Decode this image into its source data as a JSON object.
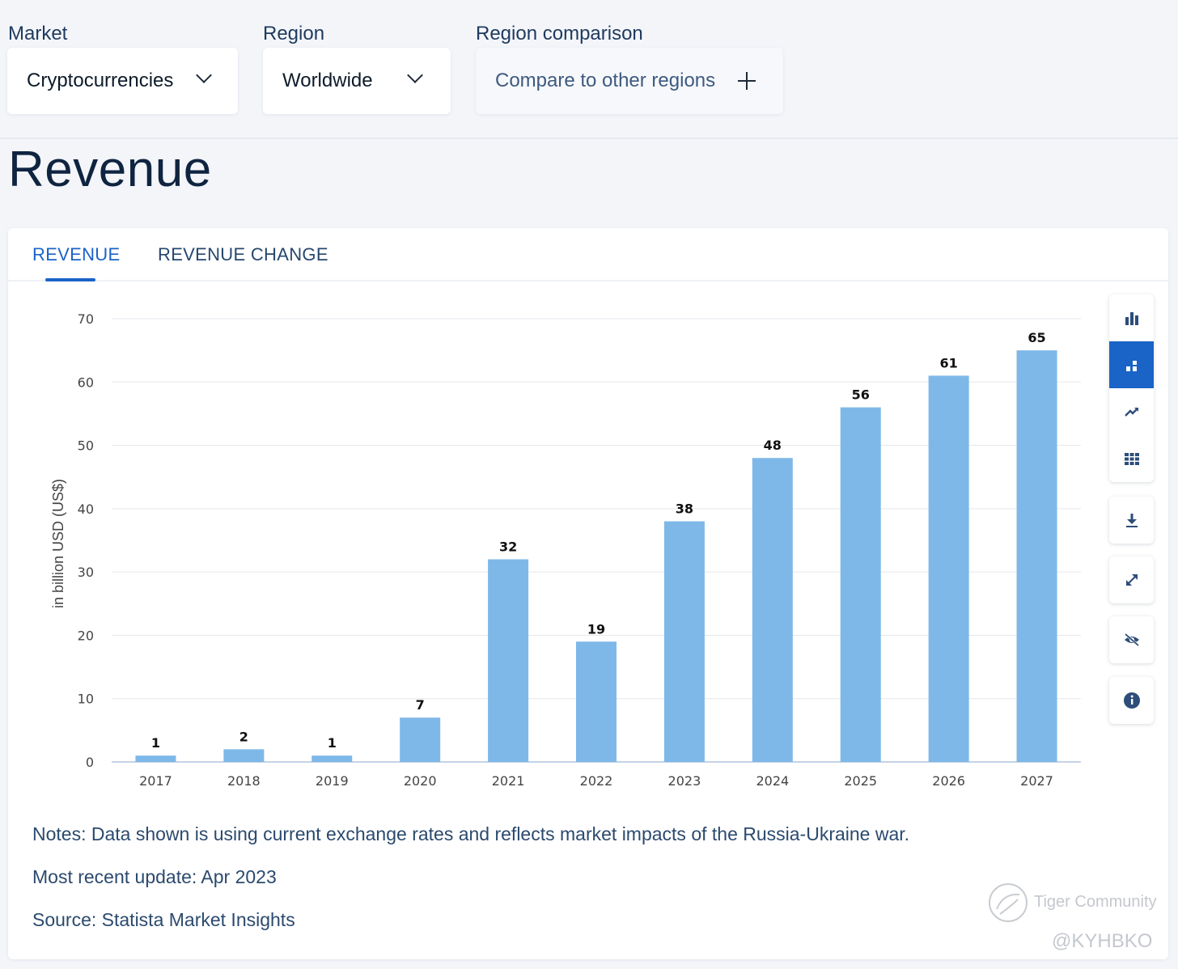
{
  "filters": {
    "market": {
      "label": "Market",
      "value": "Cryptocurrencies"
    },
    "region": {
      "label": "Region",
      "value": "Worldwide"
    },
    "comparison": {
      "label": "Region comparison",
      "value": "Compare to other regions"
    }
  },
  "page_title": "Revenue",
  "tabs": [
    {
      "label": "REVENUE",
      "active": true
    },
    {
      "label": "REVENUE CHANGE",
      "active": false
    }
  ],
  "toolbar": {
    "view_icons": [
      "bar-chart-icon",
      "stacked-bar-icon",
      "trend-line-icon",
      "table-grid-icon"
    ],
    "active_view": "stacked-bar-icon",
    "actions": [
      "download-icon",
      "expand-icon",
      "hide-icon",
      "info-icon"
    ]
  },
  "chart_data": {
    "type": "bar",
    "categories": [
      "2017",
      "2018",
      "2019",
      "2020",
      "2021",
      "2022",
      "2023",
      "2024",
      "2025",
      "2026",
      "2027"
    ],
    "values": [
      1,
      2,
      1,
      7,
      32,
      19,
      38,
      48,
      56,
      61,
      65
    ],
    "data_labels": [
      "1",
      "2",
      "1",
      "7",
      "32",
      "19",
      "38",
      "48",
      "56",
      "61",
      "65"
    ],
    "ylabel": "in billion USD (US$)",
    "xlabel": "",
    "ylim": [
      0,
      70
    ],
    "yticks": [
      "0",
      "10",
      "20",
      "30",
      "40",
      "50",
      "60",
      "70"
    ],
    "grid": true,
    "bar_color": "#7eb8e8"
  },
  "notes": {
    "note": "Notes: Data shown is using current exchange rates and reflects market impacts of the Russia-Ukraine war.",
    "update": "Most recent update: Apr 2023",
    "source": "Source: Statista Market Insights"
  },
  "watermark": {
    "brand": "Tiger Community",
    "handle": "@KYHBKO"
  }
}
